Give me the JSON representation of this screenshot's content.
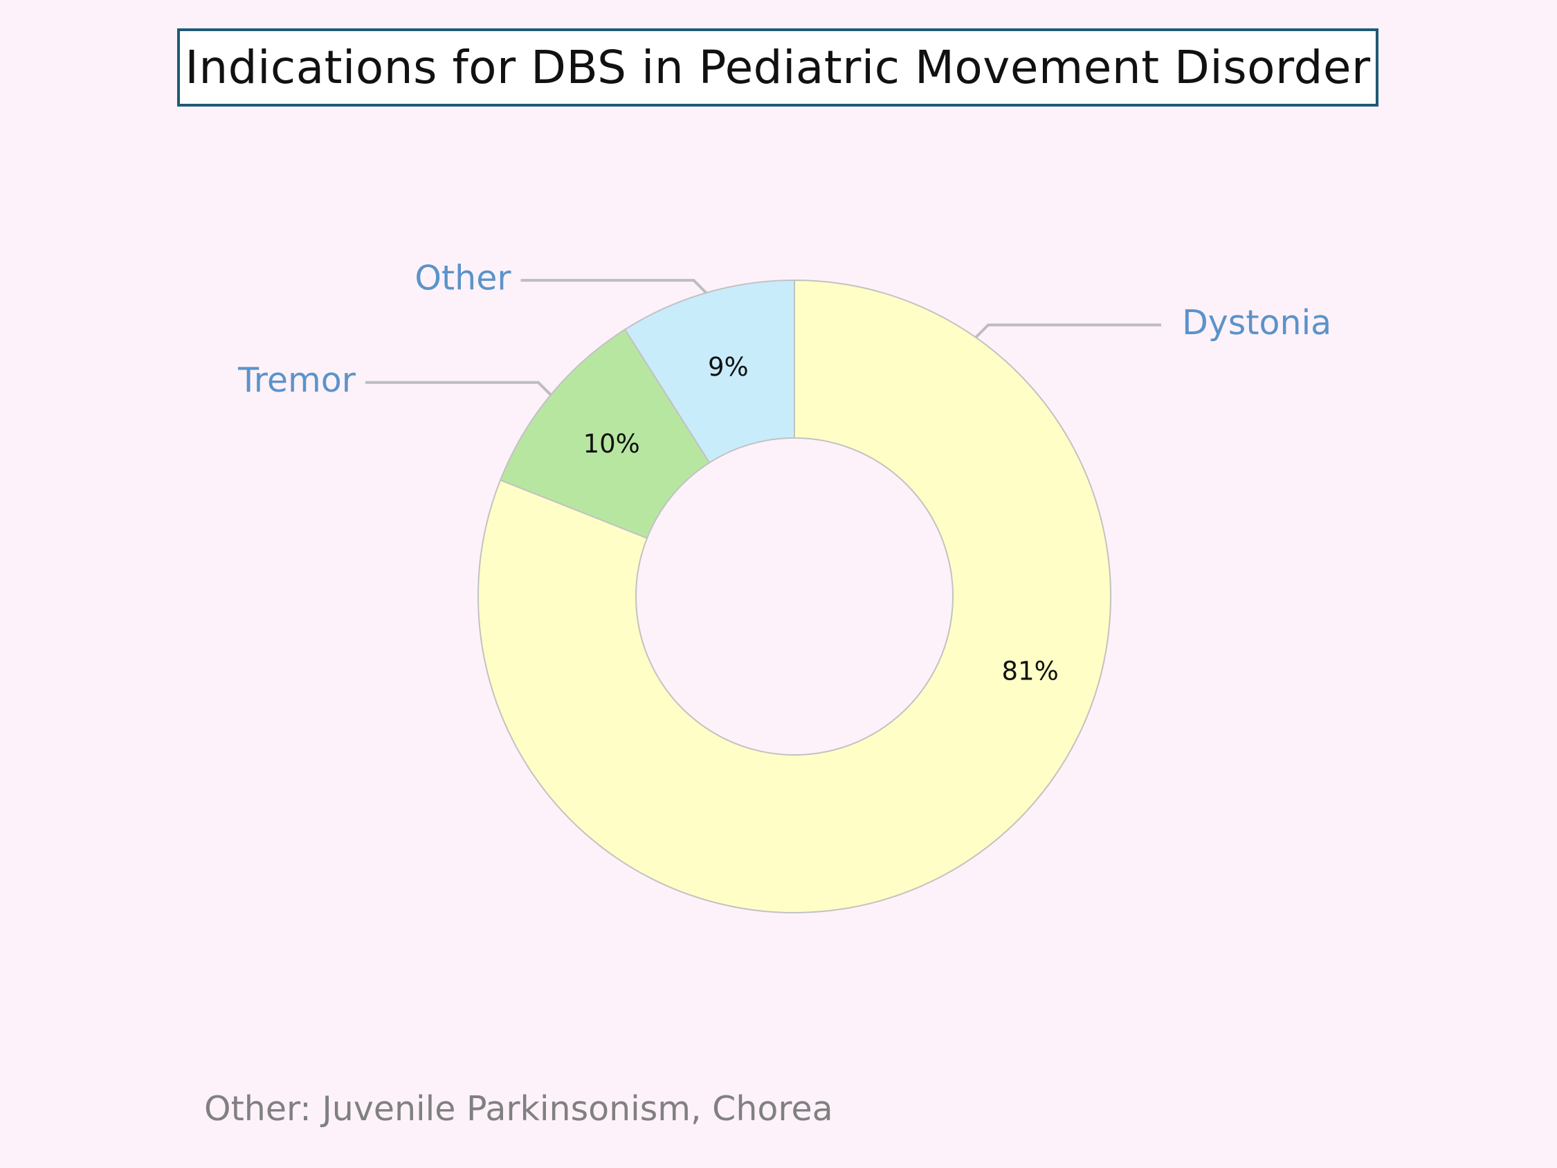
{
  "chart_data": {
    "type": "pie",
    "style": "donut",
    "title": "Indications for DBS in Pediatric Movement Disorder",
    "categories": [
      "Dystonia",
      "Tremor",
      "Other"
    ],
    "values": [
      81,
      10,
      9
    ],
    "labels": [
      "81%",
      "10%",
      "9%"
    ],
    "colors": [
      "#fefec6",
      "#b7e6a1",
      "#c9ecfb"
    ],
    "label_color": "#5b93c9",
    "leader_color": "#bdbdbd",
    "slice_stroke": "#c2c2c2",
    "start": "top",
    "direction": "clockwise",
    "footnote": "Other: Juvenile Parkinsonism, Chorea"
  }
}
